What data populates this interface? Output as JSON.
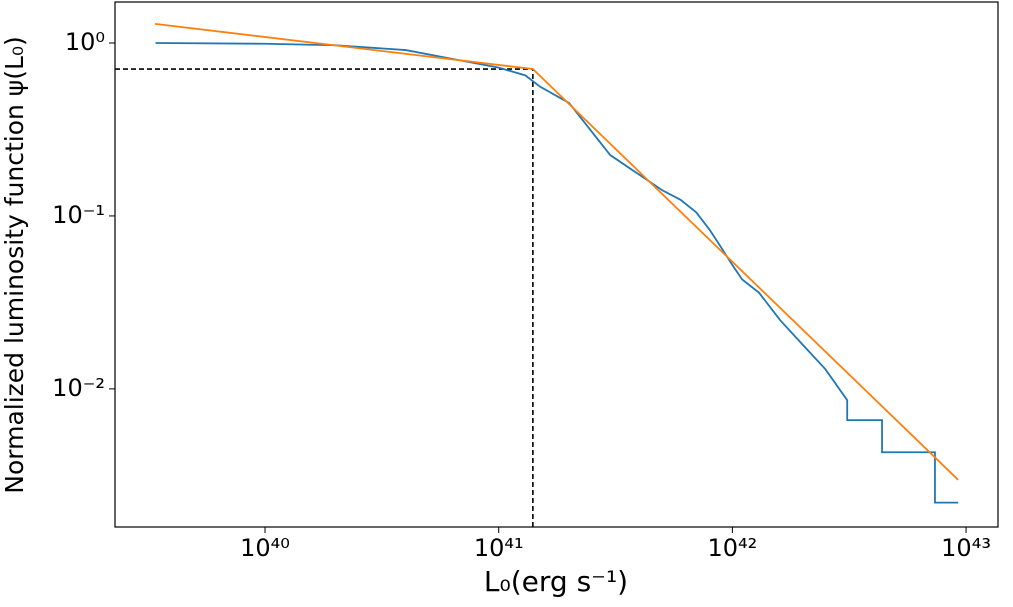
{
  "chart_data": {
    "type": "line",
    "xlabel": "L₀(erg s⁻¹)",
    "ylabel": "Normalized luminosity function  ψ(L₀)",
    "xscale": "log",
    "yscale": "log",
    "xlim": [
      2.28e+39,
      1.37e+43
    ],
    "ylim": [
      0.00159,
      1.726
    ],
    "xticks": [
      {
        "value": 1e+40,
        "label": "10⁴⁰"
      },
      {
        "value": 1e+41,
        "label": "10⁴¹"
      },
      {
        "value": 1e+42,
        "label": "10⁴²"
      },
      {
        "value": 1e+43,
        "label": "10⁴³"
      }
    ],
    "yticks": [
      {
        "value": 1,
        "label": "10⁰"
      },
      {
        "value": 0.1,
        "label": "10⁻¹"
      },
      {
        "value": 0.01,
        "label": "10⁻²"
      }
    ],
    "series": [
      {
        "color": "#1f77b4",
        "x": [
          3.4e+39,
          1e+40,
          2e+40,
          4e+40,
          6e+40,
          1e+41,
          1.3e+41,
          1.5e+41,
          2e+41,
          3e+41,
          4e+41,
          5e+41,
          6e+41,
          7e+41,
          8e+41,
          9e+41,
          1e+42,
          1.1e+42,
          1.3e+42,
          1.6e+42,
          2e+42,
          2.5e+42,
          3.1e+42,
          3.1e+42,
          4.37e+42,
          4.37e+42,
          7.36e+42,
          7.36e+42,
          9.25e+42
        ],
        "values": [
          1.0,
          0.99,
          0.97,
          0.91,
          0.82,
          0.72,
          0.65,
          0.56,
          0.45,
          0.225,
          0.173,
          0.141,
          0.124,
          0.105,
          0.083,
          0.065,
          0.052,
          0.043,
          0.036,
          0.025,
          0.018,
          0.013,
          0.0086,
          0.0066,
          0.0066,
          0.0043,
          0.0043,
          0.0022,
          0.0022
        ]
      },
      {
        "color": "#ff7f0e",
        "x": [
          3.38e+39,
          1.4e+41,
          9.25e+42
        ],
        "values": [
          1.29,
          0.707,
          0.00298
        ]
      }
    ],
    "break": {
      "x": 1.4e+41,
      "y": 0.707,
      "color": "#000000"
    }
  }
}
